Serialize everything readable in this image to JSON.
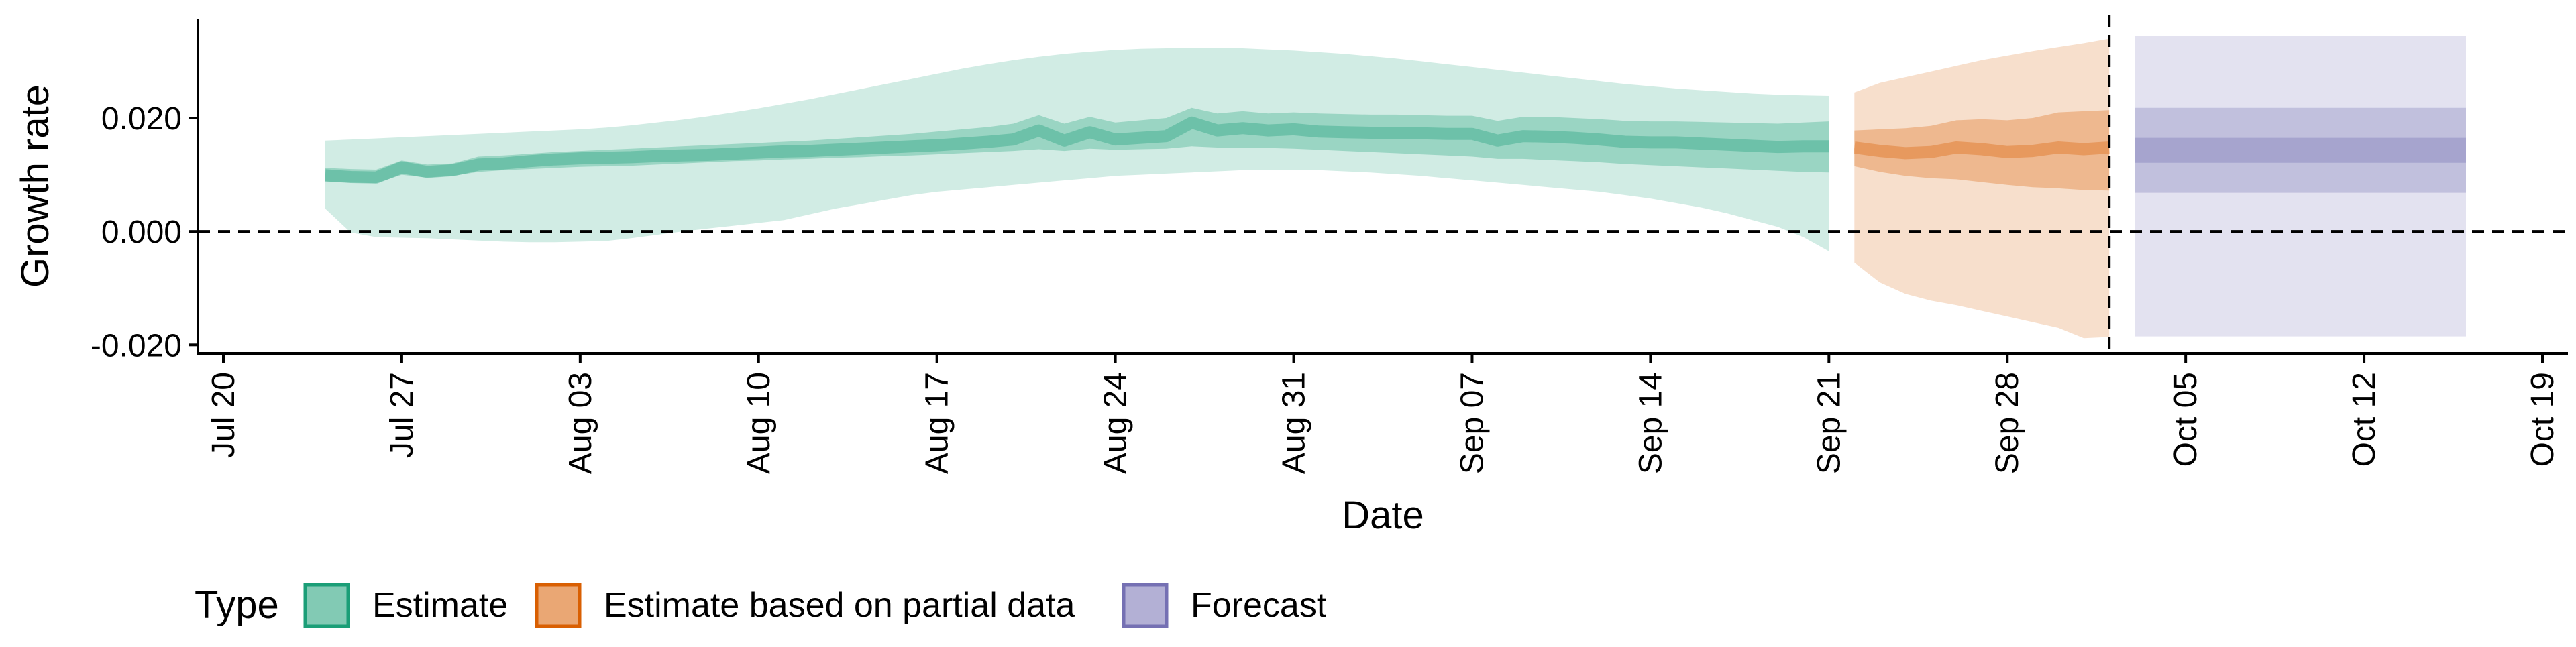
{
  "chart_data": {
    "type": "area",
    "title": "",
    "xlabel": "Date",
    "ylabel": "Growth rate",
    "ylim": [
      -0.0215,
      0.0375
    ],
    "xlim": [
      "2020-07-19",
      "2020-10-20"
    ],
    "x_tick_labels": [
      "Jul 20",
      "Jul 27",
      "Aug 03",
      "Aug 10",
      "Aug 17",
      "Aug 24",
      "Aug 31",
      "Sep 07",
      "Sep 14",
      "Sep 21",
      "Sep 28",
      "Oct 05",
      "Oct 12",
      "Oct 19"
    ],
    "x_tick_dates": [
      "2020-07-20",
      "2020-07-27",
      "2020-08-03",
      "2020-08-10",
      "2020-08-17",
      "2020-08-24",
      "2020-08-31",
      "2020-09-07",
      "2020-09-14",
      "2020-09-21",
      "2020-09-28",
      "2020-10-05",
      "2020-10-12",
      "2020-10-19"
    ],
    "y_tick_labels": [
      "-0.020",
      "0.000",
      "0.020"
    ],
    "y_tick_values": [
      -0.02,
      0.0,
      0.02
    ],
    "reference_lines": [
      {
        "axis": "y",
        "value": 0.0,
        "style": "dashed"
      },
      {
        "axis": "x",
        "value": "2020-10-02",
        "style": "dashed"
      }
    ],
    "grid": false,
    "legend": {
      "title": "Type",
      "position": "bottom-left",
      "entries": [
        {
          "label": "Estimate",
          "color": "#1b9e77"
        },
        {
          "label": "Estimate based on partial data",
          "color": "#d95f02"
        },
        {
          "label": "Forecast",
          "color": "#7570b3"
        }
      ]
    },
    "series": [
      {
        "name": "Estimate",
        "color": "#1b9e77",
        "x": [
          "2020-07-24",
          "2020-07-25",
          "2020-07-26",
          "2020-07-27",
          "2020-07-28",
          "2020-07-29",
          "2020-07-30",
          "2020-07-31",
          "2020-08-01",
          "2020-08-02",
          "2020-08-03",
          "2020-08-04",
          "2020-08-05",
          "2020-08-06",
          "2020-08-07",
          "2020-08-08",
          "2020-08-09",
          "2020-08-10",
          "2020-08-11",
          "2020-08-12",
          "2020-08-13",
          "2020-08-14",
          "2020-08-15",
          "2020-08-16",
          "2020-08-17",
          "2020-08-18",
          "2020-08-19",
          "2020-08-20",
          "2020-08-21",
          "2020-08-22",
          "2020-08-23",
          "2020-08-24",
          "2020-08-25",
          "2020-08-26",
          "2020-08-27",
          "2020-08-28",
          "2020-08-29",
          "2020-08-30",
          "2020-08-31",
          "2020-09-01",
          "2020-09-02",
          "2020-09-03",
          "2020-09-04",
          "2020-09-05",
          "2020-09-06",
          "2020-09-07",
          "2020-09-08",
          "2020-09-09",
          "2020-09-10",
          "2020-09-11",
          "2020-09-12",
          "2020-09-13",
          "2020-09-14",
          "2020-09-15",
          "2020-09-16",
          "2020-09-17",
          "2020-09-18",
          "2020-09-19",
          "2020-09-20",
          "2020-09-21"
        ],
        "median": [
          0.0099,
          0.0096,
          0.0095,
          0.0113,
          0.0105,
          0.0108,
          0.0118,
          0.012,
          0.0124,
          0.0127,
          0.0129,
          0.013,
          0.0131,
          0.0133,
          0.0134,
          0.0135,
          0.0137,
          0.0139,
          0.0141,
          0.0142,
          0.0144,
          0.0146,
          0.0148,
          0.015,
          0.0152,
          0.0155,
          0.0158,
          0.0162,
          0.0178,
          0.016,
          0.0175,
          0.0162,
          0.0165,
          0.0168,
          0.0192,
          0.0178,
          0.0182,
          0.0178,
          0.018,
          0.0176,
          0.0175,
          0.0174,
          0.0174,
          0.0173,
          0.0172,
          0.0172,
          0.016,
          0.0168,
          0.0167,
          0.0165,
          0.0162,
          0.0158,
          0.0157,
          0.0157,
          0.0155,
          0.0153,
          0.0151,
          0.0149,
          0.015,
          0.015
        ],
        "lower_50": [
          0.0088,
          0.0086,
          0.0085,
          0.01,
          0.0095,
          0.0098,
          0.0105,
          0.0108,
          0.011,
          0.0112,
          0.0114,
          0.0115,
          0.0116,
          0.0118,
          0.012,
          0.0122,
          0.0124,
          0.0125,
          0.0127,
          0.0128,
          0.013,
          0.0131,
          0.0133,
          0.0134,
          0.0136,
          0.0138,
          0.014,
          0.0142,
          0.0145,
          0.0142,
          0.0146,
          0.0144,
          0.0145,
          0.0146,
          0.015,
          0.0148,
          0.0148,
          0.0147,
          0.0146,
          0.0144,
          0.0142,
          0.014,
          0.0138,
          0.0136,
          0.0134,
          0.0132,
          0.0128,
          0.0128,
          0.0126,
          0.0124,
          0.0122,
          0.0119,
          0.0117,
          0.0115,
          0.0113,
          0.0111,
          0.0109,
          0.0107,
          0.0105,
          0.0104
        ],
        "upper_50": [
          0.0112,
          0.011,
          0.0109,
          0.0125,
          0.0118,
          0.012,
          0.0132,
          0.0134,
          0.0137,
          0.014,
          0.0142,
          0.0144,
          0.0146,
          0.0148,
          0.015,
          0.0152,
          0.0154,
          0.0156,
          0.0158,
          0.016,
          0.0163,
          0.0166,
          0.0169,
          0.0172,
          0.0176,
          0.018,
          0.0184,
          0.019,
          0.0205,
          0.019,
          0.0202,
          0.0192,
          0.0196,
          0.02,
          0.0218,
          0.0208,
          0.0212,
          0.0208,
          0.021,
          0.0208,
          0.0207,
          0.0206,
          0.0206,
          0.0205,
          0.0204,
          0.0204,
          0.0195,
          0.0202,
          0.0202,
          0.02,
          0.0198,
          0.0195,
          0.0194,
          0.0194,
          0.0193,
          0.0192,
          0.0191,
          0.019,
          0.0192,
          0.0194
        ],
        "lower_90": [
          0.004,
          -0.0002,
          -0.001,
          -0.0011,
          -0.0012,
          -0.0014,
          -0.0016,
          -0.0018,
          -0.0019,
          -0.0019,
          -0.0018,
          -0.0017,
          -0.0012,
          -0.0006,
          0.0,
          0.0005,
          0.001,
          0.0015,
          0.002,
          0.003,
          0.004,
          0.0048,
          0.0056,
          0.0064,
          0.007,
          0.0074,
          0.0078,
          0.0082,
          0.0086,
          0.009,
          0.0094,
          0.0098,
          0.01,
          0.0102,
          0.0104,
          0.0106,
          0.0108,
          0.0108,
          0.0108,
          0.0108,
          0.0106,
          0.0104,
          0.0101,
          0.0098,
          0.0094,
          0.009,
          0.0086,
          0.0082,
          0.0078,
          0.0074,
          0.007,
          0.0064,
          0.0058,
          0.005,
          0.0042,
          0.0032,
          0.002,
          0.0008,
          -0.001,
          -0.0035
        ],
        "upper_90": [
          0.016,
          0.0162,
          0.0164,
          0.0166,
          0.0168,
          0.017,
          0.0172,
          0.0174,
          0.0176,
          0.0178,
          0.018,
          0.0183,
          0.0187,
          0.0192,
          0.0197,
          0.0203,
          0.021,
          0.0217,
          0.0225,
          0.0233,
          0.0242,
          0.0251,
          0.026,
          0.0269,
          0.0278,
          0.0287,
          0.0295,
          0.0302,
          0.0308,
          0.0313,
          0.0317,
          0.032,
          0.0322,
          0.0323,
          0.0324,
          0.0324,
          0.0323,
          0.0321,
          0.0319,
          0.0316,
          0.0313,
          0.0309,
          0.0305,
          0.03,
          0.0295,
          0.029,
          0.0285,
          0.028,
          0.0275,
          0.027,
          0.0265,
          0.026,
          0.0256,
          0.0252,
          0.0249,
          0.0246,
          0.0243,
          0.0241,
          0.024,
          0.0239
        ]
      },
      {
        "name": "Estimate based on partial data",
        "color": "#d95f02",
        "x": [
          "2020-09-22",
          "2020-09-23",
          "2020-09-24",
          "2020-09-25",
          "2020-09-26",
          "2020-09-27",
          "2020-09-28",
          "2020-09-29",
          "2020-09-30",
          "2020-10-01",
          "2020-10-02"
        ],
        "median": [
          0.0148,
          0.0142,
          0.0138,
          0.014,
          0.0148,
          0.0145,
          0.014,
          0.0142,
          0.0148,
          0.0145,
          0.0148
        ],
        "lower_50": [
          0.0115,
          0.0105,
          0.0098,
          0.0094,
          0.0092,
          0.0087,
          0.0082,
          0.0078,
          0.0076,
          0.0073,
          0.0072
        ],
        "upper_50": [
          0.0178,
          0.018,
          0.0182,
          0.0186,
          0.0196,
          0.0198,
          0.0196,
          0.02,
          0.021,
          0.0212,
          0.0214
        ],
        "lower_90": [
          -0.0055,
          -0.009,
          -0.011,
          -0.0122,
          -0.013,
          -0.014,
          -0.015,
          -0.016,
          -0.017,
          -0.0188,
          -0.0186
        ],
        "upper_90": [
          0.0245,
          0.0262,
          0.0272,
          0.0282,
          0.0292,
          0.0302,
          0.031,
          0.0318,
          0.0325,
          0.0332,
          0.034
        ]
      },
      {
        "name": "Forecast",
        "color": "#7570b3",
        "x": [
          "2020-10-03",
          "2020-10-16"
        ],
        "median": [
          0.0145,
          0.0145
        ],
        "lower_30": [
          0.0121,
          0.0121
        ],
        "upper_30": [
          0.0165,
          0.0165
        ],
        "lower_50": [
          0.0068,
          0.0068
        ],
        "upper_50": [
          0.0218,
          0.0218
        ],
        "lower_90": [
          -0.0185,
          -0.0185
        ],
        "upper_90": [
          0.0345,
          0.0345
        ]
      }
    ]
  }
}
